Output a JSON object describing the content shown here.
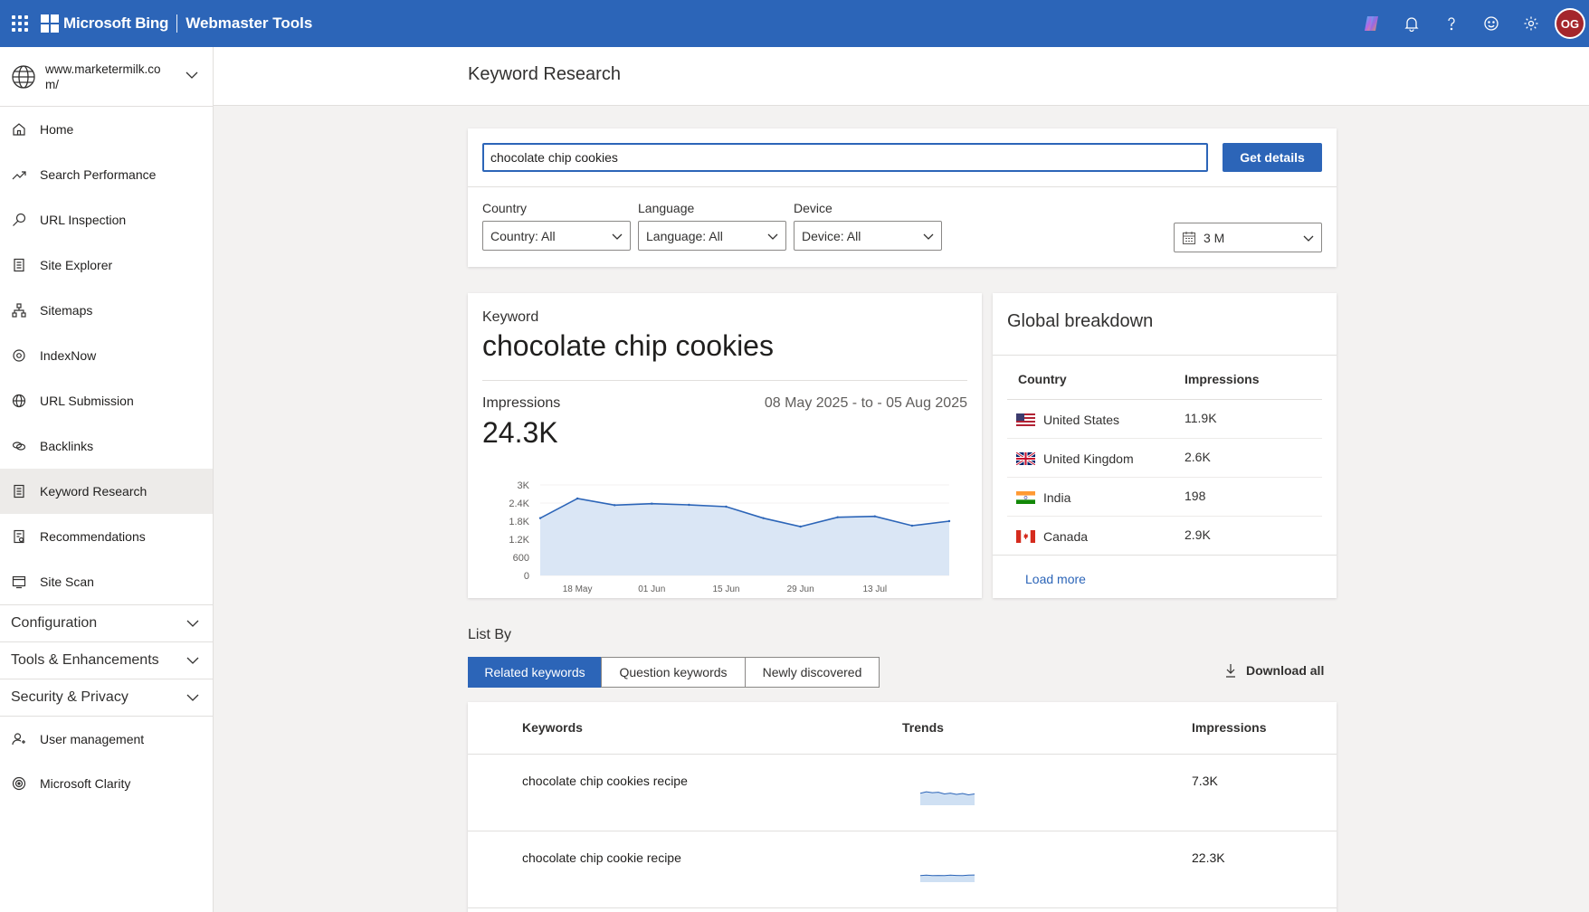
{
  "topbar": {
    "brand": "Microsoft Bing",
    "product": "Webmaster Tools",
    "avatar_initials": "OG",
    "icons": [
      "apps-waffle-icon",
      "copilot-icon",
      "bell-icon",
      "help-icon",
      "smiley-feedback-icon",
      "gear-icon"
    ]
  },
  "sidebar": {
    "site_url": "www.marketermilk.com/",
    "items": [
      {
        "label": "Home",
        "icon": "home-icon"
      },
      {
        "label": "Search Performance",
        "icon": "trend-icon"
      },
      {
        "label": "URL Inspection",
        "icon": "search-icon"
      },
      {
        "label": "Site Explorer",
        "icon": "document-icon"
      },
      {
        "label": "Sitemaps",
        "icon": "sitemap-icon"
      },
      {
        "label": "IndexNow",
        "icon": "gear-icon"
      },
      {
        "label": "URL Submission",
        "icon": "globe-icon"
      },
      {
        "label": "Backlinks",
        "icon": "link-icon"
      },
      {
        "label": "Keyword Research",
        "icon": "document-icon",
        "active": true
      },
      {
        "label": "Recommendations",
        "icon": "checklist-icon"
      },
      {
        "label": "Site Scan",
        "icon": "scan-icon"
      }
    ],
    "groups": [
      {
        "label": "Configuration"
      },
      {
        "label": "Tools & Enhancements"
      },
      {
        "label": "Security & Privacy"
      }
    ],
    "bottom_items": [
      {
        "label": "User management",
        "icon": "user-icon"
      },
      {
        "label": "Microsoft Clarity",
        "icon": "clarity-icon"
      }
    ]
  },
  "page": {
    "title": "Keyword Research"
  },
  "search": {
    "query": "chocolate chip cookies",
    "button": "Get details",
    "filters": {
      "country_label": "Country",
      "country_value": "Country: All",
      "language_label": "Language",
      "language_value": "Language: All",
      "device_label": "Device",
      "device_value": "Device: All",
      "date_value": "3 M"
    }
  },
  "keyword": {
    "label": "Keyword",
    "value": "chocolate chip cookies",
    "impressions_label": "Impressions",
    "impressions_value": "24.3K",
    "date_range": "08 May 2025 - to - 05 Aug 2025"
  },
  "chart_data": {
    "type": "area",
    "title": "",
    "xlabel": "",
    "ylabel": "",
    "y_ticks": [
      "0",
      "600",
      "1.2K",
      "1.8K",
      "2.4K",
      "3K"
    ],
    "ylim": [
      0,
      3000
    ],
    "x_ticks": [
      "18 May",
      "01 Jun",
      "15 Jun",
      "29 Jun",
      "13 Jul"
    ],
    "series": [
      {
        "x": [
          "11 May",
          "18 May",
          "25 May",
          "01 Jun",
          "08 Jun",
          "15 Jun",
          "22 Jun",
          "29 Jun",
          "06 Jul",
          "13 Jul",
          "20 Jul",
          "27 Jul"
        ],
        "values": [
          1900,
          2550,
          2330,
          2380,
          2340,
          2280,
          1900,
          1620,
          1930,
          1960,
          1650,
          1800
        ]
      }
    ],
    "grid": true,
    "color": "#2c65b8"
  },
  "global_breakdown": {
    "title": "Global breakdown",
    "col_country": "Country",
    "col_impressions": "Impressions",
    "rows": [
      {
        "country": "United States",
        "impressions": "11.9K",
        "flag": "us-flag"
      },
      {
        "country": "United Kingdom",
        "impressions": "2.6K",
        "flag": "uk-flag"
      },
      {
        "country": "India",
        "impressions": "198",
        "flag": "india-flag"
      },
      {
        "country": "Canada",
        "impressions": "2.9K",
        "flag": "canada-flag"
      }
    ],
    "load_more": "Load more"
  },
  "list_by": {
    "label": "List By",
    "tabs": [
      "Related keywords",
      "Question keywords",
      "Newly discovered"
    ],
    "active_tab": 0,
    "download": "Download all"
  },
  "keywords_table": {
    "col_keywords": "Keywords",
    "col_trends": "Trends",
    "col_impressions": "Impressions",
    "rows": [
      {
        "keyword": "chocolate chip cookies recipe",
        "impressions": "7.3K",
        "trend": [
          0.55,
          0.62,
          0.58,
          0.6,
          0.52,
          0.56,
          0.5,
          0.54,
          0.48,
          0.52
        ]
      },
      {
        "keyword": "chocolate chip cookie recipe",
        "impressions": "22.3K",
        "trend": [
          0.3,
          0.32,
          0.3,
          0.31,
          0.3,
          0.32,
          0.31,
          0.3,
          0.32,
          0.33
        ]
      }
    ]
  }
}
